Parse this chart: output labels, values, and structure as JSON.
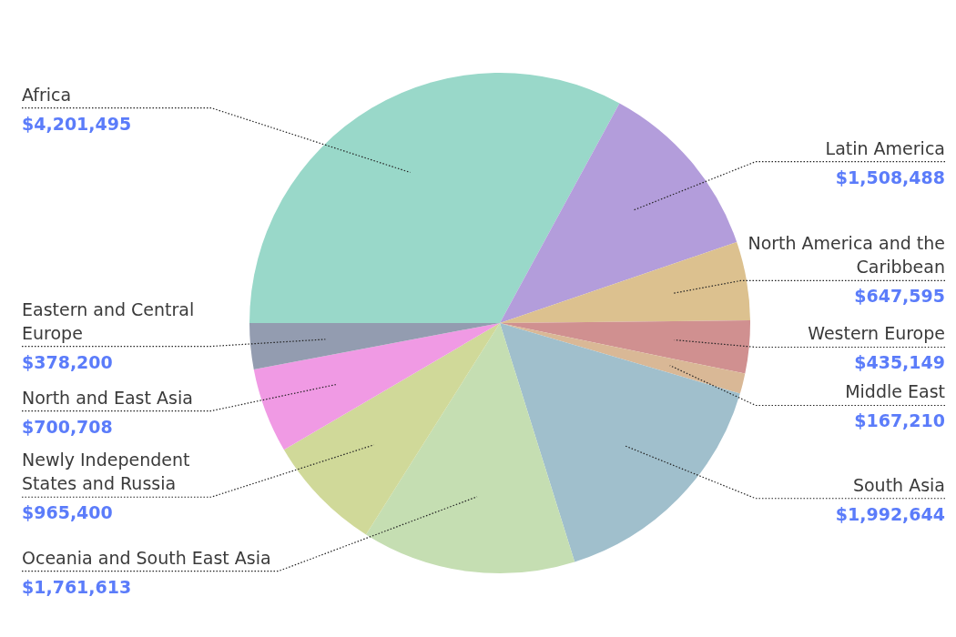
{
  "chart_data": {
    "type": "pie",
    "categories": [
      "Africa",
      "Latin America",
      "North America and the Caribbean",
      "Western Europe",
      "Middle East",
      "South Asia",
      "Oceania and South East Asia",
      "Newly Independent States and Russia",
      "North and East Asia",
      "Eastern and Central Europe"
    ],
    "values": [
      4201495,
      1508488,
      647595,
      435149,
      167210,
      1992644,
      1761613,
      965400,
      700708,
      378200
    ],
    "colors": [
      "#99d8c9",
      "#b39ddb",
      "#dcc18f",
      "#d09090",
      "#d9b896",
      "#a0bfcc",
      "#c5deb2",
      "#d0d999",
      "#f09ae4",
      "#939cb0"
    ],
    "value_labels": [
      "$4,201,495",
      "$1,508,488",
      "$647,595",
      "$435,149",
      "$167,210",
      "$1,992,644",
      "$1,761,613",
      "$965,400",
      "$700,708",
      "$378,200"
    ]
  }
}
